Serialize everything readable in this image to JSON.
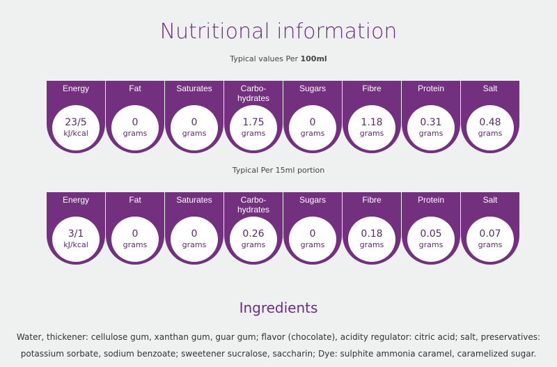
{
  "title": "Nutritional information",
  "per100": {
    "prefix": "Typical values Per ",
    "bold": "100ml",
    "items": [
      {
        "label": "Energy",
        "value": "23/5",
        "unit": "kJ/kcal"
      },
      {
        "label": "Fat",
        "value": "0",
        "unit": "grams"
      },
      {
        "label": "Saturates",
        "value": "0",
        "unit": "grams"
      },
      {
        "label": "Carbo-\nhydrates",
        "value": "1.75",
        "unit": "grams"
      },
      {
        "label": "Sugars",
        "value": "0",
        "unit": "grams"
      },
      {
        "label": "Fibre",
        "value": "1.18",
        "unit": "grams"
      },
      {
        "label": "Protein",
        "value": "0.31",
        "unit": "grams"
      },
      {
        "label": "Salt",
        "value": "0.48",
        "unit": "grams"
      }
    ]
  },
  "portion": {
    "text": "Typical Per 15ml portion",
    "items": [
      {
        "label": "Energy",
        "value": "3/1",
        "unit": "kJ/kcal"
      },
      {
        "label": "Fat",
        "value": "0",
        "unit": "grams"
      },
      {
        "label": "Saturates",
        "value": "0",
        "unit": "grams"
      },
      {
        "label": "Carbo-\nhydrates",
        "value": "0.26",
        "unit": "grams"
      },
      {
        "label": "Sugars",
        "value": "0",
        "unit": "grams"
      },
      {
        "label": "Fibre",
        "value": "0.18",
        "unit": "grams"
      },
      {
        "label": "Protein",
        "value": "0.05",
        "unit": "grams"
      },
      {
        "label": "Salt",
        "value": "0.07",
        "unit": "grams"
      }
    ]
  },
  "ingredients": {
    "title": "Ingredients",
    "text": "Water, thickener: cellulose gum, xanthan gum, guar gum; flavor (chocolate), acidity regulator: citric acid; salt, preservatives: potassium sorbate, sodium benzoate; sweetener sucralose, saccharin; Dye: sulphite ammonia caramel, caramelized sugar."
  },
  "colors": {
    "accent": "#73307f",
    "title": "#6b2d83"
  }
}
